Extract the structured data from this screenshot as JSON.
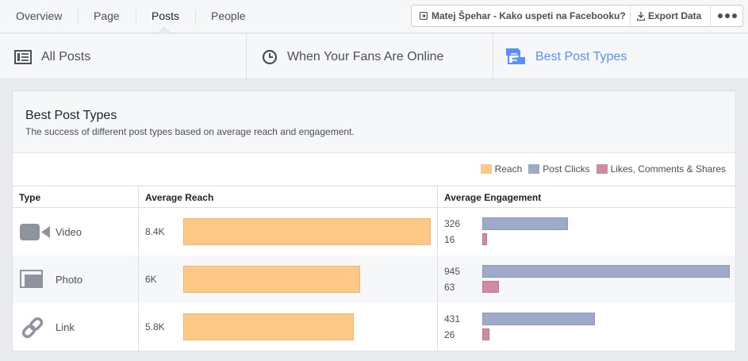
{
  "topnav": {
    "tabs": [
      {
        "label": "Overview"
      },
      {
        "label": "Page"
      },
      {
        "label": "Posts"
      },
      {
        "label": "People"
      }
    ],
    "page_name": "Matej Špehar - Kako uspeti na Facebooku?",
    "export_label": "Export Data"
  },
  "subtabs": [
    {
      "label": "All Posts",
      "icon": "list-icon"
    },
    {
      "label": "When Your Fans Are Online",
      "icon": "clock-icon"
    },
    {
      "label": "Best Post Types",
      "icon": "post-types-icon"
    }
  ],
  "card": {
    "title": "Best Post Types",
    "subtitle": "The success of different post types based on average reach and engagement.",
    "legend": [
      {
        "label": "Reach",
        "color": "#ffc887"
      },
      {
        "label": "Post Clicks",
        "color": "#9faac8"
      },
      {
        "label": "Likes, Comments & Shares",
        "color": "#d08ba4"
      }
    ],
    "columns": {
      "type": "Type",
      "reach": "Average Reach",
      "engagement": "Average Engagement"
    }
  },
  "chart_data": {
    "type": "bar",
    "categories": [
      "Video",
      "Photo",
      "Link"
    ],
    "series": [
      {
        "name": "Reach",
        "values": [
          8400,
          6000,
          5800
        ],
        "labels": [
          "8.4K",
          "6K",
          "5.8K"
        ]
      },
      {
        "name": "Post Clicks",
        "values": [
          326,
          945,
          431
        ]
      },
      {
        "name": "Likes, Comments & Shares",
        "values": [
          16,
          63,
          26
        ]
      }
    ]
  },
  "rows": [
    {
      "type": "Video",
      "icon": "video-camera-icon",
      "reach_label": "8.4K",
      "clicks": "326",
      "likes": "16"
    },
    {
      "type": "Photo",
      "icon": "photo-icon",
      "reach_label": "6K",
      "clicks": "945",
      "likes": "63"
    },
    {
      "type": "Link",
      "icon": "link-icon",
      "reach_label": "5.8K",
      "clicks": "431",
      "likes": "26"
    }
  ]
}
